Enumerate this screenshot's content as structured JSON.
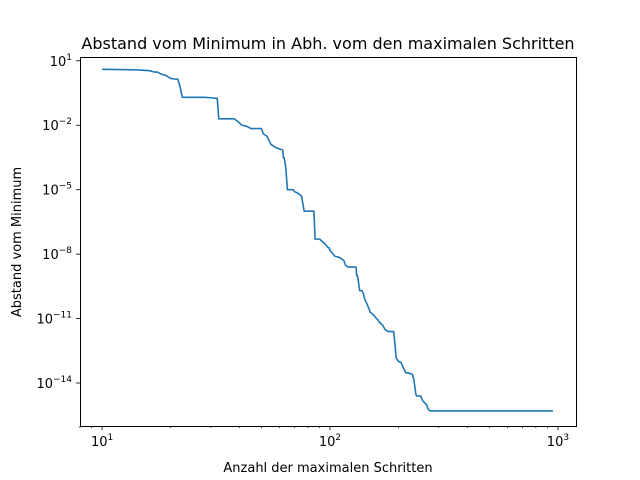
{
  "chart_data": {
    "type": "line",
    "title": "Abstand vom Minimum in Abh. vom den maximalen Schritten",
    "xlabel": "Anzahl der maximalen Schritten",
    "ylabel": "Abstand vom Minimum",
    "xscale": "log",
    "yscale": "log",
    "xlim": [
      8,
      1200
    ],
    "ylim": [
      1e-16,
      15
    ],
    "grid": false,
    "xticks": [
      {
        "value": 10,
        "base": "10",
        "exp": "1"
      },
      {
        "value": 100,
        "base": "10",
        "exp": "2"
      },
      {
        "value": 1000,
        "base": "10",
        "exp": "3"
      }
    ],
    "yticks": [
      {
        "value": 10,
        "base": "10",
        "exp": "1"
      },
      {
        "value": 0.01,
        "base": "10",
        "exp": "−2"
      },
      {
        "value": 1e-05,
        "base": "10",
        "exp": "−5"
      },
      {
        "value": 1e-08,
        "base": "10",
        "exp": "−8"
      },
      {
        "value": 1e-11,
        "base": "10",
        "exp": "−11"
      },
      {
        "value": 1e-14,
        "base": "10",
        "exp": "−14"
      }
    ],
    "series": [
      {
        "color": "#1f77b4",
        "x": [
          10,
          12,
          14,
          16,
          17,
          17.5,
          18,
          19,
          20,
          21,
          21.5,
          22,
          22.5,
          25,
          28,
          30,
          31.5,
          32,
          32.5,
          36,
          37,
          38,
          40,
          41,
          43,
          45,
          50,
          51,
          53,
          55,
          58,
          62,
          62.5,
          63,
          64,
          65,
          69,
          70,
          72,
          75,
          77,
          80,
          81,
          85,
          86,
          90,
          95,
          98,
          99,
          100,
          105,
          110,
          115,
          117,
          120,
          125,
          130,
          131,
          132,
          135,
          138,
          140,
          142,
          145,
          148,
          150,
          155,
          160,
          162,
          164,
          170,
          172,
          175,
          180,
          185,
          190,
          192,
          195,
          200,
          205,
          207,
          210,
          215,
          220,
          230,
          233,
          235,
          238,
          240,
          245,
          250,
          255,
          260,
          265,
          268,
          270,
          275,
          280,
          285,
          300,
          400,
          500,
          700,
          950
        ],
        "y": [
          4,
          3.9,
          3.8,
          3.5,
          3.0,
          3.0,
          2.5,
          2.1,
          1.5,
          1.4,
          1.4,
          0.6,
          0.2,
          0.2,
          0.2,
          0.19,
          0.18,
          0.18,
          0.02,
          0.02,
          0.02,
          0.02,
          0.013,
          0.01,
          0.009,
          0.007,
          0.007,
          0.004,
          0.003,
          0.0013,
          0.0009,
          0.0007,
          0.0003,
          0.0003,
          0.0001,
          1e-05,
          1e-05,
          8e-06,
          7e-06,
          5e-06,
          1e-06,
          1e-06,
          1e-06,
          1e-06,
          5e-08,
          5e-08,
          3e-08,
          2e-08,
          2e-08,
          1.5e-08,
          8e-09,
          7e-09,
          5e-09,
          3e-09,
          2.5e-09,
          2.5e-09,
          2.5e-09,
          1e-09,
          1e-09,
          2e-10,
          2e-10,
          1.5e-10,
          8e-11,
          5e-11,
          3e-11,
          2e-11,
          1.5e-11,
          1e-11,
          9e-12,
          7e-12,
          5e-12,
          4e-12,
          3e-12,
          2.5e-12,
          2.5e-12,
          2.5e-12,
          1e-12,
          1.5e-13,
          1e-13,
          9e-14,
          7e-14,
          5e-14,
          3e-14,
          3e-14,
          2.5e-14,
          1.5e-14,
          8e-15,
          3e-15,
          2.5e-15,
          2.5e-15,
          2.5e-15,
          1.5e-15,
          1.2e-15,
          1e-15,
          7e-16,
          6e-16,
          5e-16,
          5e-16,
          5e-16,
          5e-16,
          5e-16,
          5e-16,
          5e-16,
          5e-16
        ]
      }
    ]
  }
}
